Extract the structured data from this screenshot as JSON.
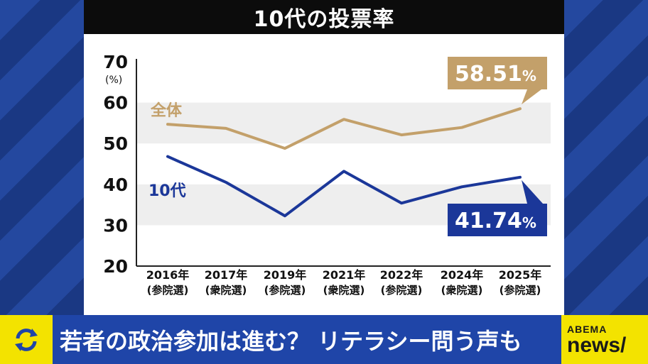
{
  "title": "10代の投票率",
  "ticker": {
    "headline": "若者の政治参加は進む？ リテラシー問う声も"
  },
  "logo": {
    "top": "ABEMA",
    "bottom": "news/"
  },
  "icons": {
    "refresh": "refresh-icon"
  },
  "colors": {
    "overall": "#c3a06a",
    "teen": "#1b3799",
    "grid_band": "#eeeeee",
    "ticker_bg": "#1f45a8",
    "accent_yellow": "#f3e300"
  },
  "chart_data": {
    "type": "line",
    "categories": [
      "2016年\n(参院選)",
      "2017年\n(衆院選)",
      "2019年\n(参院選)",
      "2021年\n(衆院選)",
      "2022年\n(参院選)",
      "2024年\n(衆院選)",
      "2025年\n(参院選)"
    ],
    "ylim": [
      20,
      70
    ],
    "yticks": [
      20,
      30,
      40,
      50,
      60,
      70
    ],
    "y_unit": "(%)",
    "series": [
      {
        "name": "全体",
        "values": [
          54.7,
          53.7,
          48.8,
          55.9,
          52.1,
          53.9,
          58.51
        ],
        "end_label": "58.51%"
      },
      {
        "name": "10代",
        "values": [
          46.8,
          40.5,
          32.3,
          43.2,
          35.4,
          39.4,
          41.74
        ],
        "end_label": "41.74%"
      }
    ]
  }
}
